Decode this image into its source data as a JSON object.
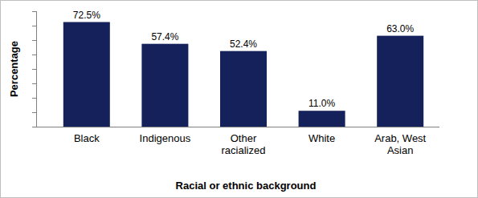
{
  "chart_data": {
    "type": "bar",
    "x_label": "Racial or ethnic background",
    "y_label": "Percentage",
    "categories": [
      "Black",
      "Indigenous",
      "Other racialized",
      "White",
      "Arab, West Asian"
    ],
    "values": [
      72.5,
      57.4,
      52.4,
      11.0,
      63.0
    ],
    "value_labels": [
      "72.5%",
      "57.4%",
      "52.4%",
      "11.0%",
      "63.0%"
    ],
    "color": "#14215a",
    "ylim": [
      0,
      80
    ],
    "yticks": [
      0,
      10,
      20,
      30,
      40,
      50,
      60,
      70,
      80
    ],
    "grid": false,
    "data_labels": true,
    "tick_labels": "x"
  }
}
